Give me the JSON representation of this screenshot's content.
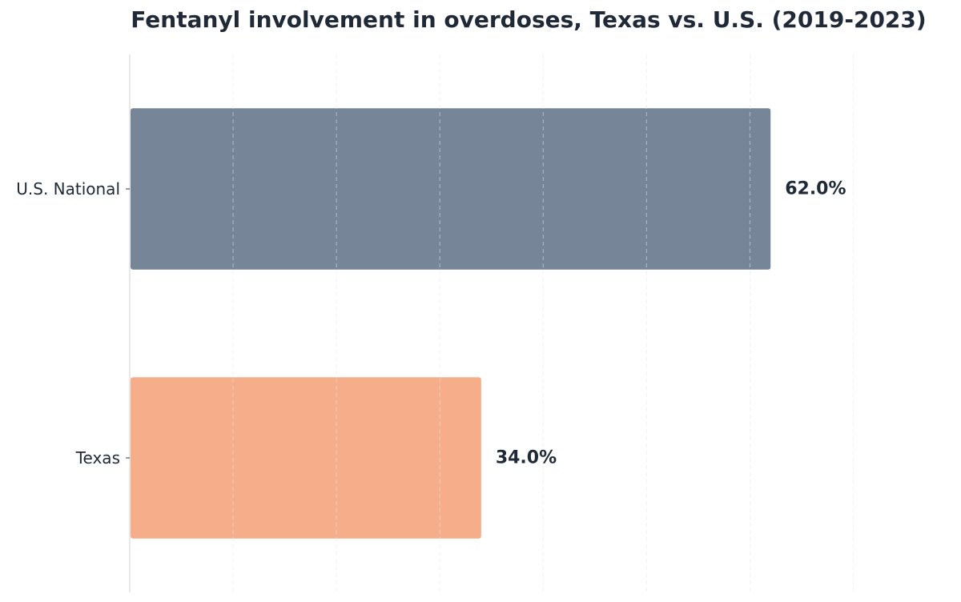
{
  "chart_data": {
    "type": "bar",
    "orientation": "horizontal",
    "title": "Fentanyl involvement in overdoses, Texas vs. U.S. (2019-2023)",
    "categories": [
      "U.S. National",
      "Texas"
    ],
    "values": [
      62.0,
      34.0
    ],
    "value_labels": [
      "62.0%",
      "34.0%"
    ],
    "colors": [
      "#778599",
      "#f5ae89"
    ],
    "xlim": [
      0,
      75
    ],
    "grid": true,
    "xlabel": "",
    "ylabel": ""
  }
}
